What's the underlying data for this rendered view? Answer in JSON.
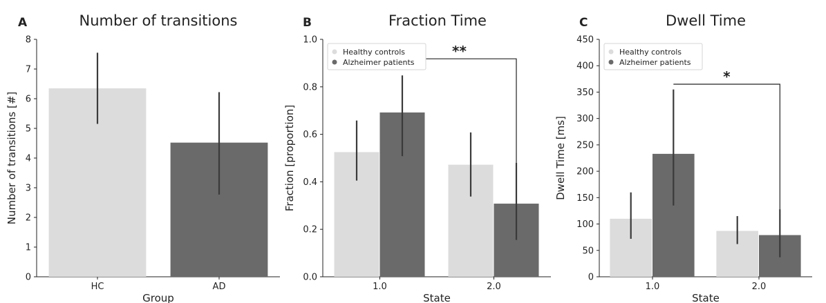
{
  "colors": {
    "hc": "#dcdcdc",
    "ad": "#6a6a6a",
    "errbar": "#3a3a3a",
    "axis": "#222222"
  },
  "chart_data": [
    {
      "panel": "A",
      "type": "bar",
      "title": "Number of transitions",
      "xlabel": "Group",
      "ylabel": "Number of transitions [#]",
      "ylim": [
        0,
        8
      ],
      "yticks": [
        "0",
        "1",
        "2",
        "3",
        "4",
        "5",
        "6",
        "7",
        "8"
      ],
      "categories": [
        "HC",
        "AD"
      ],
      "values": [
        6.35,
        4.52
      ],
      "error_low": [
        5.15,
        2.77
      ],
      "error_high": [
        7.55,
        6.22
      ],
      "bar_colors": [
        "hc",
        "ad"
      ],
      "legend": [],
      "significance": null
    },
    {
      "panel": "B",
      "type": "bar",
      "title": "Fraction Time",
      "xlabel": "State",
      "ylabel": "Fraction [proportion]",
      "ylim": [
        0,
        1.0
      ],
      "yticks": [
        "0.0",
        "0.2",
        "0.4",
        "0.6",
        "0.8",
        "1.0"
      ],
      "categories": [
        "1.0",
        "2.0"
      ],
      "legend_position": "top-left",
      "legend": [
        "Healthy controls",
        "Alzheimer patients"
      ],
      "series": [
        {
          "name": "Healthy controls",
          "color": "hc",
          "values": [
            0.525,
            0.472
          ],
          "error_low": [
            0.405,
            0.338
          ],
          "error_high": [
            0.658,
            0.608
          ]
        },
        {
          "name": "Alzheimer patients",
          "color": "ad",
          "values": [
            0.692,
            0.308
          ],
          "error_low": [
            0.508,
            0.155
          ],
          "error_high": [
            0.848,
            0.48
          ]
        }
      ],
      "significance": {
        "label": "**",
        "from": [
          0,
          1
        ],
        "to": [
          1,
          1
        ],
        "y": 0.918
      }
    },
    {
      "panel": "C",
      "type": "bar",
      "title": "Dwell Time",
      "xlabel": "State",
      "ylabel": "Dwell Time [ms]",
      "ylim": [
        0,
        450
      ],
      "yticks": [
        "0",
        "50",
        "100",
        "150",
        "200",
        "250",
        "300",
        "350",
        "400",
        "450"
      ],
      "categories": [
        "1.0",
        "2.0"
      ],
      "legend_position": "top-left",
      "legend": [
        "Healthy controls",
        "Alzheimer patients"
      ],
      "series": [
        {
          "name": "Healthy controls",
          "color": "hc",
          "values": [
            110,
            87
          ],
          "error_low": [
            72,
            62
          ],
          "error_high": [
            160,
            115
          ]
        },
        {
          "name": "Alzheimer patients",
          "color": "ad",
          "values": [
            233,
            79
          ],
          "error_low": [
            135,
            37
          ],
          "error_high": [
            355,
            128
          ]
        }
      ],
      "significance": {
        "label": "*",
        "from": [
          0,
          1
        ],
        "to": [
          1,
          1
        ],
        "y": 365
      }
    }
  ]
}
